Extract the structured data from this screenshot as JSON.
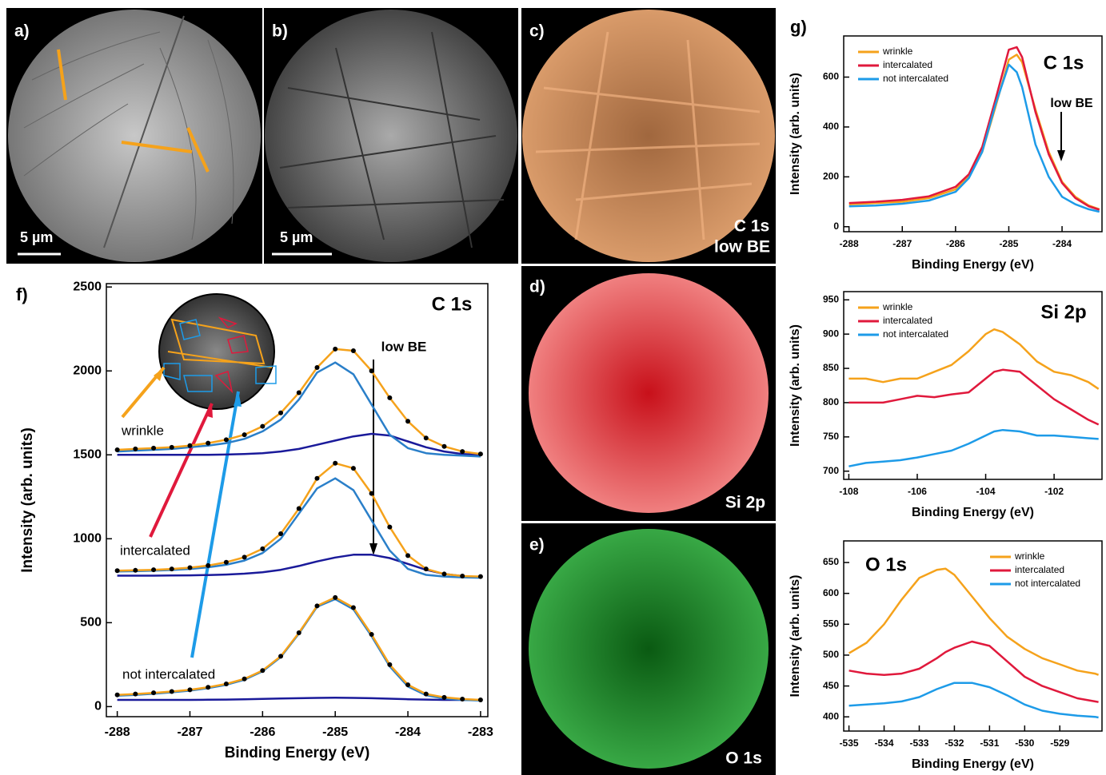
{
  "panels": {
    "a": {
      "label": "a)",
      "scale": "5 µm"
    },
    "b": {
      "label": "b)",
      "scale": "5 µm"
    },
    "c": {
      "label": "c)",
      "caption": [
        "C 1s",
        "low BE"
      ]
    },
    "d": {
      "label": "d)",
      "caption": "Si 2p"
    },
    "e": {
      "label": "e)",
      "caption": "O 1s"
    }
  },
  "chart_data": [
    {
      "type": "line",
      "panel_label": "f)",
      "title": "C 1s",
      "x_label": "Binding Energy (eV)",
      "y_label": "Intensity (arb. units)",
      "annotations": [
        "low BE",
        "wrinkle",
        "intercalated",
        "not intercalated"
      ],
      "xlim": [
        -288.15,
        -282.9
      ],
      "ylim": [
        -60,
        2520
      ],
      "xticks": [
        -288,
        -287,
        -286,
        -285,
        -284,
        -283
      ],
      "yticks": [
        0,
        500,
        1000,
        1500,
        2000,
        2500
      ],
      "x": [
        -288,
        -287.75,
        -287.5,
        -287.25,
        -287,
        -286.75,
        -286.5,
        -286.25,
        -286,
        -285.75,
        -285.5,
        -285.25,
        -285,
        -284.75,
        -284.5,
        -284.25,
        -284,
        -283.75,
        -283.5,
        -283.25,
        -283
      ],
      "series": [
        {
          "color": "#1a1a9a",
          "values": [
            1500,
            1500,
            1500,
            1500,
            1500,
            1500,
            1502,
            1505,
            1510,
            1520,
            1535,
            1560,
            1585,
            1610,
            1625,
            1615,
            1580,
            1545,
            1520,
            1505,
            1500
          ]
        },
        {
          "color": "#2a7fc9",
          "values": [
            1520,
            1525,
            1530,
            1535,
            1545,
            1555,
            1570,
            1595,
            1640,
            1710,
            1830,
            1990,
            2050,
            1980,
            1800,
            1620,
            1540,
            1510,
            1500,
            1495,
            1490
          ]
        },
        {
          "color": "#f5a21b",
          "values": [
            1530,
            1535,
            1540,
            1545,
            1555,
            1570,
            1590,
            1620,
            1670,
            1750,
            1870,
            2020,
            2130,
            2120,
            2000,
            1840,
            1700,
            1600,
            1550,
            1520,
            1505
          ]
        },
        {
          "color": "#1a1a9a",
          "values": [
            780,
            780,
            780,
            781,
            782,
            784,
            787,
            792,
            800,
            815,
            838,
            865,
            888,
            905,
            905,
            885,
            850,
            815,
            790,
            778,
            772
          ]
        },
        {
          "color": "#2a7fc9",
          "values": [
            805,
            807,
            810,
            814,
            820,
            830,
            845,
            870,
            915,
            1000,
            1150,
            1300,
            1360,
            1290,
            1110,
            930,
            820,
            785,
            775,
            770,
            768
          ]
        },
        {
          "color": "#f5a21b",
          "values": [
            810,
            812,
            815,
            820,
            828,
            840,
            860,
            890,
            940,
            1030,
            1180,
            1360,
            1450,
            1420,
            1270,
            1070,
            900,
            820,
            790,
            778,
            775
          ]
        },
        {
          "color": "#1a1a9a",
          "values": [
            40,
            40,
            40,
            40,
            40,
            41,
            42,
            44,
            46,
            48,
            50,
            52,
            53,
            52,
            50,
            47,
            44,
            42,
            40,
            40,
            40
          ]
        },
        {
          "color": "#2a7fc9",
          "values": [
            65,
            70,
            77,
            85,
            95,
            110,
            130,
            160,
            210,
            295,
            435,
            595,
            640,
            580,
            420,
            240,
            120,
            68,
            48,
            40,
            36
          ]
        },
        {
          "color": "#f5a21b",
          "values": [
            70,
            75,
            82,
            90,
            100,
            115,
            135,
            165,
            215,
            300,
            440,
            600,
            650,
            590,
            430,
            250,
            130,
            75,
            55,
            45,
            40
          ]
        },
        {
          "color": "#000000",
          "marker": "dot",
          "values": [
            1530,
            1535,
            1540,
            1545,
            1555,
            1570,
            1590,
            1620,
            1670,
            1750,
            1870,
            2020,
            2130,
            2120,
            2000,
            1840,
            1700,
            1600,
            1550,
            1520,
            1505
          ]
        },
        {
          "color": "#000000",
          "marker": "dot",
          "values": [
            810,
            812,
            815,
            820,
            828,
            840,
            860,
            890,
            940,
            1030,
            1180,
            1360,
            1450,
            1420,
            1270,
            1070,
            900,
            820,
            790,
            778,
            775
          ]
        },
        {
          "color": "#000000",
          "marker": "dot",
          "values": [
            70,
            75,
            82,
            90,
            100,
            115,
            135,
            165,
            215,
            300,
            440,
            600,
            650,
            590,
            430,
            250,
            130,
            75,
            55,
            45,
            40
          ]
        }
      ]
    },
    {
      "type": "line",
      "panel_label": "g)",
      "title": "C 1s",
      "x_label": "Binding Energy (eV)",
      "y_label": "Intensity (arb. units)",
      "annotations": [
        "low BE"
      ],
      "legend": "upper left",
      "xlim": [
        -288.1,
        -283.25
      ],
      "ylim": [
        -20,
        765
      ],
      "xticks": [
        -288,
        -287,
        -286,
        -285,
        -284
      ],
      "yticks": [
        0,
        200,
        400,
        600
      ],
      "x": [
        -288,
        -287.5,
        -287,
        -286.5,
        -286,
        -285.75,
        -285.5,
        -285.25,
        -285,
        -284.85,
        -284.75,
        -284.5,
        -284.25,
        -284,
        -283.75,
        -283.5,
        -283.3
      ],
      "series": [
        {
          "name": "wrinkle",
          "color": "#f5a21b",
          "values": [
            90,
            95,
            100,
            115,
            150,
            200,
            300,
            480,
            670,
            690,
            660,
            470,
            300,
            180,
            120,
            85,
            70
          ]
        },
        {
          "name": "intercalated",
          "color": "#e0193c",
          "values": [
            95,
            100,
            108,
            122,
            160,
            210,
            320,
            510,
            710,
            720,
            680,
            460,
            290,
            175,
            115,
            82,
            68
          ]
        },
        {
          "name": "not intercalated",
          "color": "#1d9be8",
          "values": [
            82,
            85,
            92,
            105,
            140,
            195,
            300,
            490,
            650,
            620,
            560,
            330,
            200,
            120,
            90,
            70,
            60
          ]
        }
      ]
    },
    {
      "type": "line",
      "title": "Si 2p",
      "x_label": "Binding Energy (eV)",
      "y_label": "Intensity (arb. units)",
      "legend": "upper left",
      "xlim": [
        -108.15,
        -100.6
      ],
      "ylim": [
        688,
        962
      ],
      "xticks": [
        -108,
        -106,
        -104,
        -102
      ],
      "yticks": [
        700,
        750,
        800,
        850,
        900,
        950
      ],
      "x": [
        -108,
        -107.5,
        -107,
        -106.5,
        -106,
        -105.5,
        -105,
        -104.5,
        -104,
        -103.75,
        -103.5,
        -103,
        -102.5,
        -102,
        -101.5,
        -101,
        -100.7
      ],
      "series": [
        {
          "name": "wrinkle",
          "color": "#f5a21b",
          "values": [
            835,
            835,
            830,
            835,
            835,
            845,
            855,
            875,
            900,
            907,
            903,
            885,
            860,
            845,
            840,
            830,
            820
          ]
        },
        {
          "name": "intercalated",
          "color": "#e0193c",
          "values": [
            800,
            800,
            800,
            805,
            810,
            808,
            812,
            815,
            835,
            845,
            848,
            845,
            825,
            805,
            790,
            775,
            768
          ]
        },
        {
          "name": "not intercalated",
          "color": "#1d9be8",
          "values": [
            707,
            712,
            714,
            716,
            720,
            725,
            730,
            740,
            752,
            758,
            760,
            758,
            752,
            752,
            750,
            748,
            747
          ]
        }
      ]
    },
    {
      "type": "line",
      "title": "O 1s",
      "x_label": "Binding Energy (eV)",
      "y_label": "Intensity (arb. units)",
      "legend": "upper right",
      "xlim": [
        -535.15,
        -527.8
      ],
      "ylim": [
        377,
        685
      ],
      "xticks": [
        -535,
        -534,
        -533,
        -532,
        -531,
        -530,
        -529
      ],
      "yticks": [
        400,
        450,
        500,
        550,
        600,
        650
      ],
      "x": [
        -535,
        -534.5,
        -534,
        -533.5,
        -533,
        -532.5,
        -532.25,
        -532,
        -531.5,
        -531,
        -530.5,
        -530,
        -529.5,
        -529,
        -528.5,
        -528,
        -527.9
      ],
      "series": [
        {
          "name": "wrinkle",
          "color": "#f5a21b",
          "values": [
            503,
            520,
            550,
            590,
            625,
            638,
            640,
            630,
            595,
            560,
            530,
            510,
            495,
            485,
            475,
            470,
            468
          ]
        },
        {
          "name": "intercalated",
          "color": "#e0193c",
          "values": [
            475,
            470,
            468,
            470,
            478,
            495,
            505,
            512,
            522,
            515,
            490,
            465,
            450,
            440,
            430,
            425,
            424
          ]
        },
        {
          "name": "not intercalated",
          "color": "#1d9be8",
          "values": [
            418,
            420,
            422,
            425,
            432,
            445,
            450,
            455,
            455,
            448,
            435,
            420,
            410,
            405,
            402,
            400,
            399
          ]
        }
      ]
    }
  ]
}
